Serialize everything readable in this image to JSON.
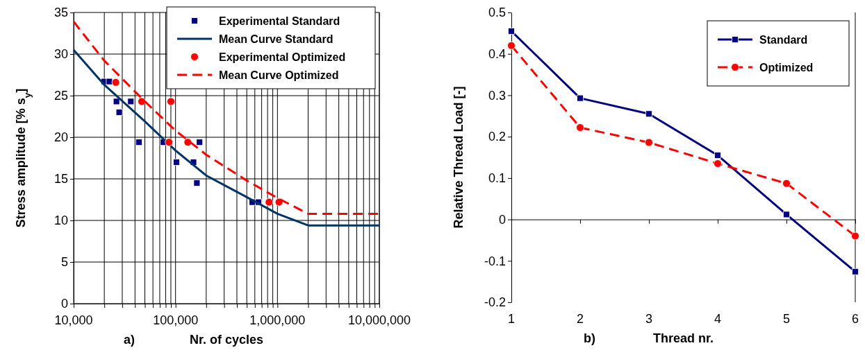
{
  "chart_data": [
    {
      "type": "scatter",
      "log": "x",
      "grid": true,
      "legend": "top right",
      "xlabel": "Nr. of cycles",
      "ylabel": "Stress amplitude [% s$_{y}$]",
      "annotations": [
        "a)"
      ],
      "xlim": [
        10000,
        10000000
      ],
      "ylim": [
        0,
        35
      ],
      "xticks": [
        {
          "value": 10000,
          "label": "10,000"
        },
        {
          "value": 20000,
          "label": null
        },
        {
          "value": 30000,
          "label": null
        },
        {
          "value": 40000,
          "label": null
        },
        {
          "value": 50000,
          "label": null
        },
        {
          "value": 60000,
          "label": null
        },
        {
          "value": 70000,
          "label": null
        },
        {
          "value": 80000,
          "label": null
        },
        {
          "value": 90000,
          "label": null
        },
        {
          "value": 100000,
          "label": "100,000"
        },
        {
          "value": 200000,
          "label": null
        },
        {
          "value": 300000,
          "label": null
        },
        {
          "value": 400000,
          "label": null
        },
        {
          "value": 500000,
          "label": null
        },
        {
          "value": 600000,
          "label": null
        },
        {
          "value": 700000,
          "label": null
        },
        {
          "value": 800000,
          "label": null
        },
        {
          "value": 900000,
          "label": null
        },
        {
          "value": 1000000,
          "label": "1,000,000"
        },
        {
          "value": 2000000,
          "label": null
        },
        {
          "value": 3000000,
          "label": null
        },
        {
          "value": 4000000,
          "label": null
        },
        {
          "value": 5000000,
          "label": null
        },
        {
          "value": 6000000,
          "label": null
        },
        {
          "value": 7000000,
          "label": null
        },
        {
          "value": 8000000,
          "label": null
        },
        {
          "value": 9000000,
          "label": null
        },
        {
          "value": 10000000,
          "label": "10,000,000"
        }
      ],
      "yticks": [
        0,
        5,
        10,
        15,
        20,
        25,
        30,
        35
      ],
      "series": [
        {
          "name": "Experimental Standard",
          "marker": "square",
          "color": "#000080",
          "x": [
            20000,
            22400,
            26300,
            36400,
            28000,
            43700,
            76000,
            172000,
            102000,
            150000,
            162000,
            567000,
            650000
          ],
          "values": [
            26.7,
            26.7,
            24.3,
            24.3,
            23.0,
            19.4,
            19.4,
            19.4,
            17.0,
            17.0,
            14.5,
            12.2,
            12.2
          ]
        },
        {
          "name": "Mean Curve Standard",
          "type": "line",
          "marker": "none",
          "line_style": "solid",
          "color": "#003366",
          "x": [
            10000,
            20000,
            50000,
            100000,
            200000,
            500000,
            1000000,
            2000000,
            10000000
          ],
          "values": [
            30.5,
            26.3,
            21.9,
            18.4,
            15.4,
            12.8,
            10.8,
            9.4,
            9.4
          ]
        },
        {
          "name": "Experimental Optimized",
          "marker": "circle",
          "color": "#ff0000",
          "x": [
            25900,
            46600,
            90000,
            86300,
            132000,
            828000,
            1036000
          ],
          "values": [
            26.6,
            24.3,
            24.3,
            19.4,
            19.4,
            12.2,
            12.2
          ]
        },
        {
          "name": "Mean Curve Optimized",
          "type": "line",
          "marker": "none",
          "line_style": "dashed",
          "color": "#ff0000",
          "x": [
            10000,
            20000,
            50000,
            100000,
            200000,
            500000,
            1000000,
            2000000,
            10000000
          ],
          "values": [
            33.9,
            29.2,
            24.3,
            20.8,
            17.9,
            14.8,
            12.7,
            10.8,
            10.8
          ]
        }
      ]
    },
    {
      "type": "line",
      "legend": "top right",
      "xlabel": "Thread nr.",
      "ylabel": "Relative Thread Load [-]",
      "annotations": [
        "b)"
      ],
      "xlim": [
        1,
        6
      ],
      "ylim": [
        -0.2,
        0.5
      ],
      "xticks": [
        1,
        2,
        3,
        4,
        5,
        6
      ],
      "yticks": [
        -0.2,
        -0.1,
        0,
        0.1,
        0.2,
        0.3,
        0.4,
        0.5
      ],
      "x": [
        1,
        2,
        3,
        4,
        5,
        6
      ],
      "series": [
        {
          "name": "Standard",
          "marker": "square",
          "line_style": "solid",
          "color": "#000080",
          "values": [
            0.455,
            0.293,
            0.255,
            0.155,
            0.012,
            -0.126
          ]
        },
        {
          "name": "Optimized",
          "marker": "circle",
          "line_style": "dashed",
          "color": "#ff0000",
          "values": [
            0.42,
            0.222,
            0.186,
            0.135,
            0.087,
            -0.04
          ]
        }
      ]
    }
  ]
}
